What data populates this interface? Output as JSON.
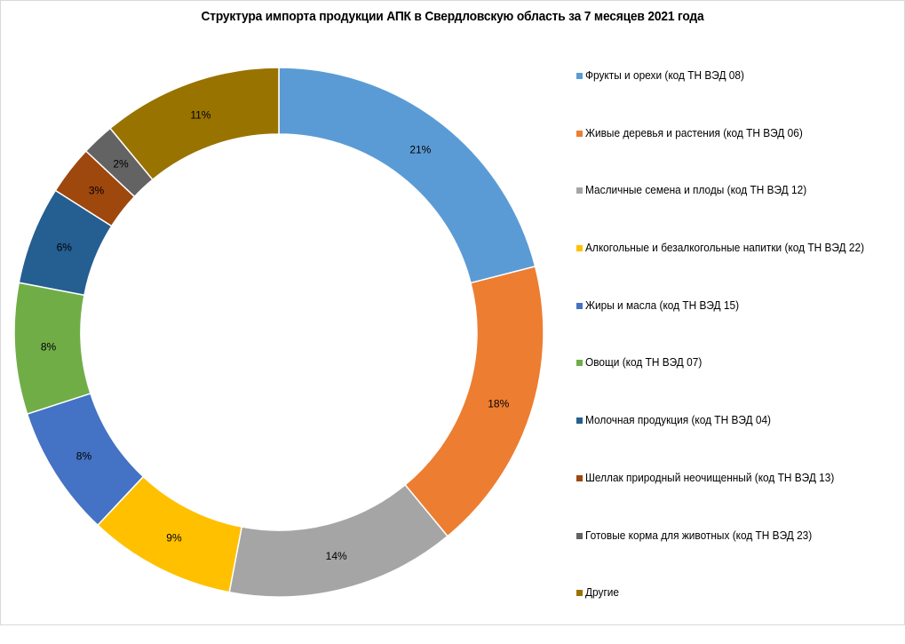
{
  "chart_data": {
    "type": "pie",
    "variant": "donut",
    "title": "Структура импорта продукции АПК в Свердловскую область за 7 месяцев 2021 года",
    "legend_position": "right",
    "slices": [
      {
        "label": "Фрукты и орехи (код ТН ВЭД 08)",
        "value": 21,
        "value_label": "21%",
        "color": "#5b9bd5"
      },
      {
        "label": "Живые деревья и растения (код ТН ВЭД 06)",
        "value": 18,
        "value_label": "18%",
        "color": "#ed7d31"
      },
      {
        "label": "Масличные семена и плоды (код ТН ВЭД 12)",
        "value": 14,
        "value_label": "14%",
        "color": "#a5a5a5"
      },
      {
        "label": "Алкогольные и безалкогольные напитки (код ТН ВЭД 22)",
        "value": 9,
        "value_label": "9%",
        "color": "#ffc000"
      },
      {
        "label": "Жиры и масла (код ТН ВЭД 15)",
        "value": 8,
        "value_label": "8%",
        "color": "#4472c4"
      },
      {
        "label": "Овощи (код ТН ВЭД 07)",
        "value": 8,
        "value_label": "8%",
        "color": "#70ad47"
      },
      {
        "label": "Молочная продукция (код ТН ВЭД 04)",
        "value": 6,
        "value_label": "6%",
        "color": "#255e91"
      },
      {
        "label": "Шеллак природный неочищенный  (код ТН ВЭД 13)",
        "value": 3,
        "value_label": "3%",
        "color": "#9e480e"
      },
      {
        "label": "Готовые корма для животных (код ТН ВЭД 23)",
        "value": 2,
        "value_label": "2%",
        "color": "#636363"
      },
      {
        "label": "Другие",
        "value": 11,
        "value_label": "11%",
        "color": "#997300"
      }
    ]
  }
}
